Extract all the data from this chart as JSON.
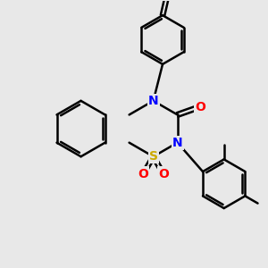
{
  "bg_color": "#e8e8e8",
  "bond_color": "#000000",
  "bond_width": 1.8,
  "atom_colors": {
    "N": "#0000ff",
    "O": "#ff0000",
    "S": "#ccaa00",
    "C": "#000000"
  },
  "font_size_atom": 10
}
